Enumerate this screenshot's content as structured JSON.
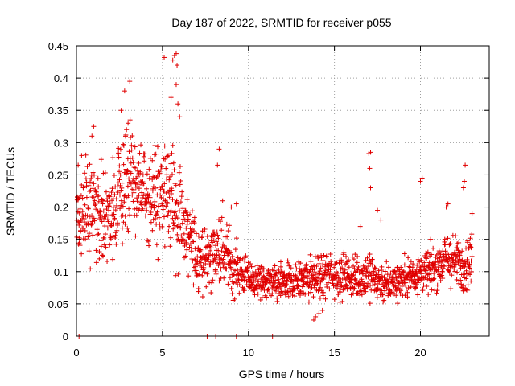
{
  "chart_data": {
    "type": "scatter",
    "title": "Day 187 of 2022, SRMTID for receiver p055",
    "xlabel": "GPS time / hours",
    "ylabel": "SRMTID / TECUs",
    "xlim": [
      0,
      24
    ],
    "ylim": [
      0,
      0.45
    ],
    "x_ticks": [
      0,
      5,
      10,
      15,
      20
    ],
    "x_tick_labels": [
      "0",
      "5",
      "10",
      "15",
      "20"
    ],
    "y_ticks": [
      0,
      0.05,
      0.1,
      0.15,
      0.2,
      0.25,
      0.3,
      0.35,
      0.4,
      0.45
    ],
    "y_tick_labels": [
      "0",
      "0.05",
      "0.1",
      "0.15",
      "0.2",
      "0.25",
      "0.3",
      "0.35",
      "0.4",
      "0.45"
    ],
    "grid": true,
    "marker": "+",
    "series": [
      {
        "name": "SRMTID",
        "color": "#e00000",
        "trend": {
          "x": [
            0,
            0.5,
            1,
            1.5,
            2,
            2.5,
            3,
            3.5,
            4,
            4.5,
            5,
            5.5,
            6,
            6.5,
            7,
            7.5,
            8,
            8.5,
            9,
            9.5,
            10,
            10.5,
            11,
            11.5,
            12,
            12.5,
            13,
            13.5,
            14,
            14.5,
            15,
            15.5,
            16,
            16.5,
            17,
            17.5,
            18,
            18.5,
            19,
            19.5,
            20,
            20.5,
            21,
            21.5,
            22,
            22.5,
            23
          ],
          "y": [
            0.19,
            0.2,
            0.2,
            0.19,
            0.18,
            0.22,
            0.24,
            0.23,
            0.22,
            0.22,
            0.21,
            0.22,
            0.19,
            0.15,
            0.13,
            0.12,
            0.13,
            0.13,
            0.11,
            0.1,
            0.09,
            0.085,
            0.08,
            0.08,
            0.08,
            0.085,
            0.09,
            0.09,
            0.09,
            0.095,
            0.095,
            0.095,
            0.09,
            0.09,
            0.1,
            0.085,
            0.08,
            0.085,
            0.09,
            0.095,
            0.1,
            0.1,
            0.11,
            0.12,
            0.115,
            0.11,
            0.12
          ],
          "spread": [
            0.06,
            0.07,
            0.06,
            0.06,
            0.05,
            0.07,
            0.07,
            0.06,
            0.06,
            0.07,
            0.08,
            0.09,
            0.08,
            0.05,
            0.05,
            0.04,
            0.05,
            0.05,
            0.04,
            0.03,
            0.025,
            0.025,
            0.025,
            0.025,
            0.025,
            0.025,
            0.03,
            0.03,
            0.03,
            0.03,
            0.03,
            0.03,
            0.03,
            0.03,
            0.035,
            0.03,
            0.025,
            0.025,
            0.025,
            0.03,
            0.03,
            0.03,
            0.03,
            0.035,
            0.035,
            0.035,
            0.035
          ],
          "points_per_hour": 75
        },
        "outliers": [
          [
            0.15,
            0.0
          ],
          [
            7.6,
            0.0
          ],
          [
            8.1,
            0.0
          ],
          [
            9.3,
            0.0
          ],
          [
            11.4,
            0.0
          ],
          [
            5.1,
            0.432
          ],
          [
            5.6,
            0.428
          ],
          [
            5.7,
            0.435
          ],
          [
            5.8,
            0.438
          ],
          [
            5.85,
            0.42
          ],
          [
            3.1,
            0.395
          ],
          [
            2.8,
            0.38
          ],
          [
            5.8,
            0.39
          ],
          [
            5.5,
            0.37
          ],
          [
            5.9,
            0.36
          ],
          [
            2.6,
            0.35
          ],
          [
            3.0,
            0.33
          ],
          [
            1.0,
            0.325
          ],
          [
            0.9,
            0.31
          ],
          [
            6.0,
            0.34
          ],
          [
            17.0,
            0.283
          ],
          [
            17.1,
            0.285
          ],
          [
            17.05,
            0.26
          ],
          [
            17.1,
            0.23
          ],
          [
            20.0,
            0.24
          ],
          [
            20.1,
            0.245
          ],
          [
            22.6,
            0.265
          ],
          [
            22.55,
            0.24
          ],
          [
            22.5,
            0.23
          ],
          [
            8.3,
            0.29
          ],
          [
            8.2,
            0.265
          ],
          [
            9.3,
            0.205
          ],
          [
            9.0,
            0.2
          ],
          [
            13.8,
            0.025
          ],
          [
            13.9,
            0.03
          ],
          [
            14.1,
            0.035
          ],
          [
            14.3,
            0.04
          ],
          [
            17.5,
            0.195
          ],
          [
            17.7,
            0.18
          ],
          [
            16.5,
            0.17
          ],
          [
            21.5,
            0.2
          ],
          [
            21.6,
            0.205
          ],
          [
            0.1,
            0.265
          ],
          [
            0.3,
            0.28
          ],
          [
            0.4,
            0.23
          ],
          [
            23.0,
            0.19
          ]
        ]
      }
    ]
  }
}
